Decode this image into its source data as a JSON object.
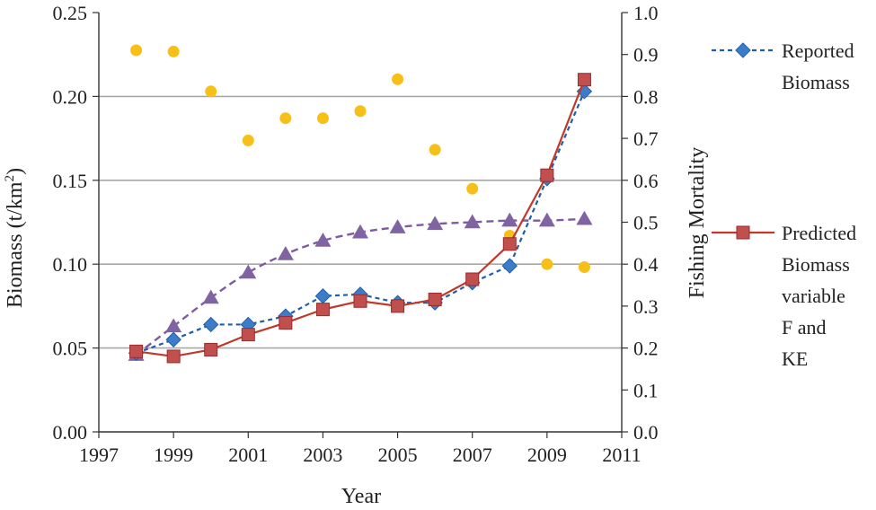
{
  "chart_data": {
    "type": "line",
    "xlabel": "Year",
    "ylabel": "Biomass (t/km",
    "ylabel_sup": "2",
    "ylabel_end": ")",
    "y2label": "Fishing Mortality",
    "xlim": [
      1997,
      2011
    ],
    "x_ticks": [
      1997,
      1999,
      2001,
      2003,
      2005,
      2007,
      2009,
      2011
    ],
    "ylim": [
      0,
      0.25
    ],
    "y_ticks": [
      "0.00",
      "0.05",
      "0.10",
      "0.15",
      "0.20",
      "0.25"
    ],
    "y2lim": [
      0,
      1.0
    ],
    "y2_ticks": [
      "0.0",
      "0.1",
      "0.2",
      "0.3",
      "0.4",
      "0.5",
      "0.6",
      "0.7",
      "0.8",
      "0.9",
      "1.0"
    ],
    "gridlines_y": [
      0.05,
      0.1,
      0.15,
      0.2
    ],
    "legend_position": "right",
    "series": [
      {
        "name": "Reported Biomass",
        "legend_lines": [
          "Reported",
          "Biomass"
        ],
        "axis": "left",
        "style": "dashed-line-diamond",
        "color": "#1f5fa8",
        "marker_color": "#3d7cc9",
        "x": [
          1998,
          1999,
          2000,
          2001,
          2002,
          2003,
          2004,
          2005,
          2006,
          2007,
          2008,
          2009,
          2010
        ],
        "y": [
          0.047,
          0.055,
          0.064,
          0.064,
          0.069,
          0.081,
          0.082,
          0.077,
          0.077,
          0.089,
          0.099,
          0.151,
          0.203
        ]
      },
      {
        "name": "Predicted Biomass variable F and KE",
        "legend_lines": [
          "Predicted",
          "Biomass",
          "variable",
          "F and",
          "KE"
        ],
        "axis": "left",
        "style": "solid-line-square",
        "color": "#c0392b",
        "marker_color": "#c0504d",
        "x": [
          1998,
          1999,
          2000,
          2001,
          2002,
          2003,
          2004,
          2005,
          2006,
          2007,
          2008,
          2009,
          2010
        ],
        "y": [
          0.048,
          0.045,
          0.049,
          0.058,
          0.065,
          0.073,
          0.078,
          0.075,
          0.079,
          0.091,
          0.112,
          0.153,
          0.21
        ]
      },
      {
        "axis": "left",
        "style": "dashed-line-triangle",
        "color": "#7f5aa2",
        "marker_color": "#8064a2",
        "x": [
          1998,
          1999,
          2000,
          2001,
          2002,
          2003,
          2004,
          2005,
          2006,
          2007,
          2008,
          2009,
          2010
        ],
        "y": [
          0.046,
          0.063,
          0.08,
          0.095,
          0.106,
          0.114,
          0.119,
          0.122,
          0.124,
          0.125,
          0.126,
          0.126,
          0.127
        ]
      },
      {
        "axis": "right",
        "style": "markers-circle",
        "color": "#f5b800",
        "marker_color": "#f6c019",
        "x": [
          1998,
          1999,
          2000,
          2001,
          2002,
          2003,
          2004,
          2005,
          2006,
          2007,
          2008,
          2009,
          2010
        ],
        "y": [
          0.91,
          0.907,
          0.812,
          0.695,
          0.748,
          0.748,
          0.765,
          0.841,
          0.673,
          0.58,
          0.468,
          0.4,
          0.393
        ]
      }
    ]
  }
}
